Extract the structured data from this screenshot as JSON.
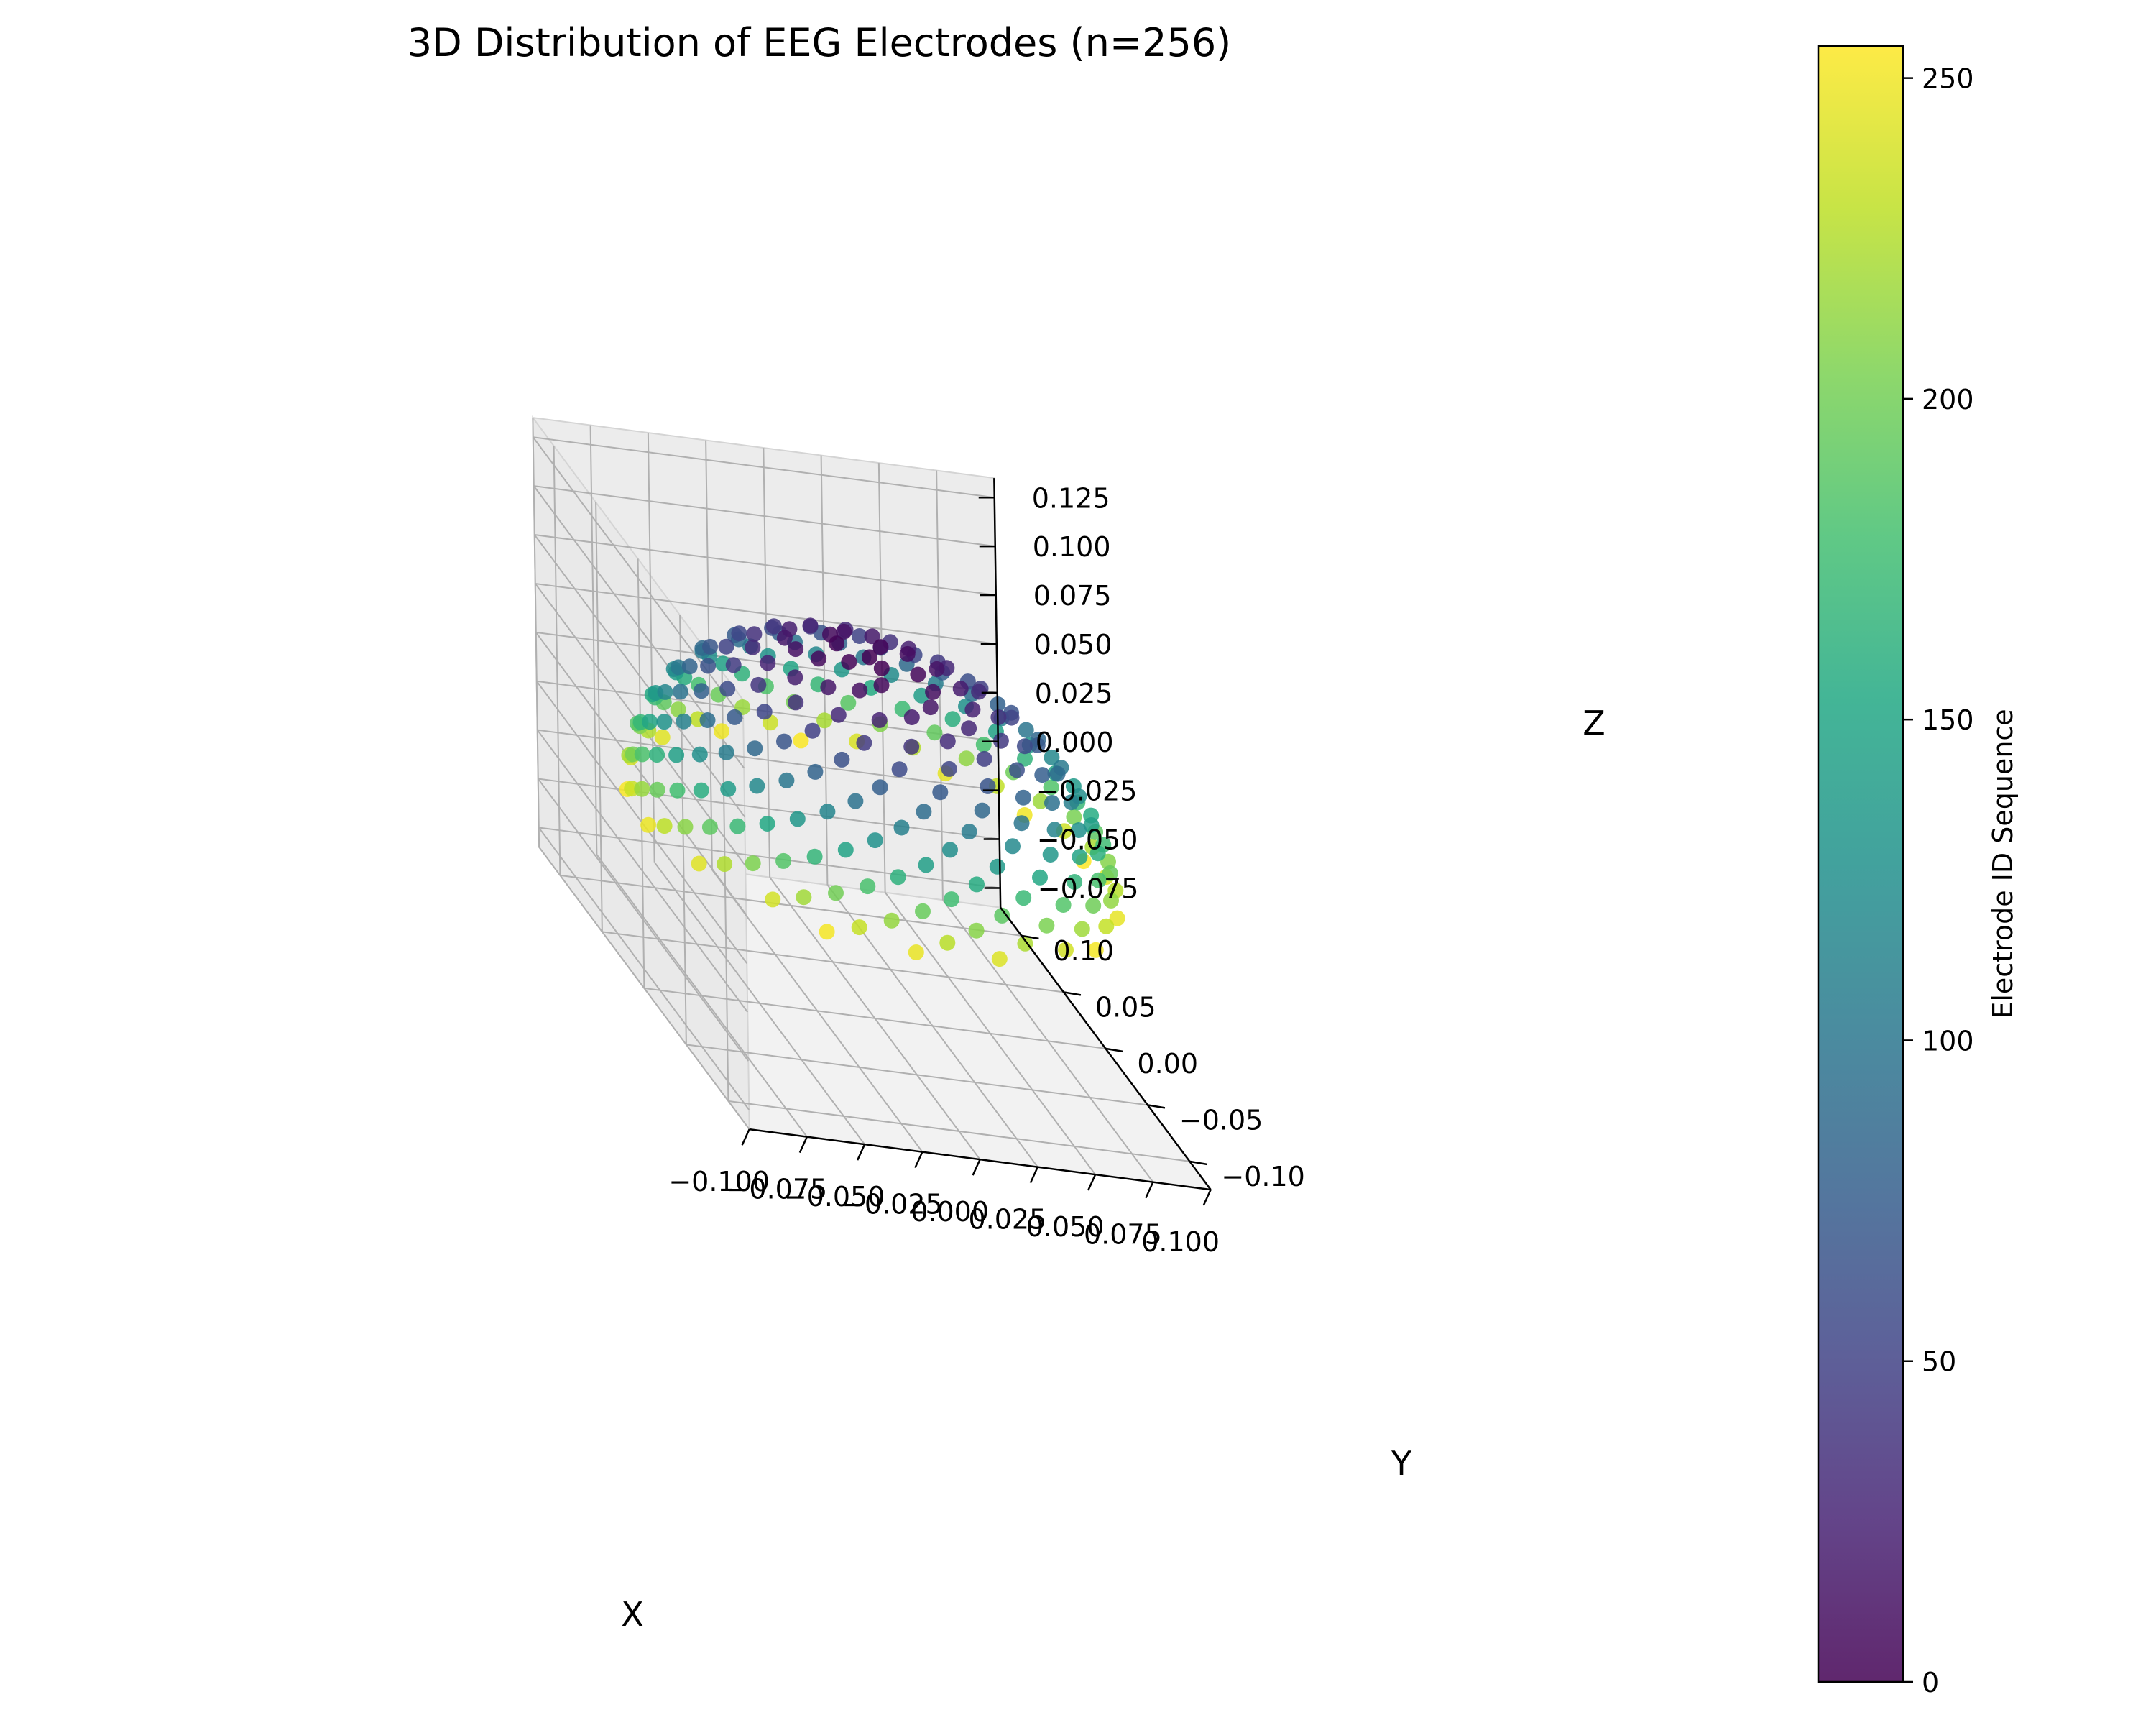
{
  "chart_data": {
    "type": "scatter",
    "projection": "3d",
    "title": "3D Distribution of EEG Electrodes (n=256)",
    "xlabel": "X",
    "ylabel": "Y",
    "zlabel": "Z",
    "xlim": [
      -0.1,
      0.1
    ],
    "ylim": [
      -0.125,
      0.125
    ],
    "zlim": [
      -0.085,
      0.135
    ],
    "x_ticks": [
      "−0.100",
      "−0.075",
      "−0.050",
      "−0.025",
      "0.000",
      "0.025",
      "0.050",
      "0.075",
      "0.100"
    ],
    "y_ticks": [
      "−0.10",
      "−0.05",
      "0.00",
      "0.05",
      "0.10"
    ],
    "z_ticks": [
      "−0.075",
      "−0.050",
      "−0.025",
      "0.000",
      "0.025",
      "0.050",
      "0.075",
      "0.100",
      "0.125"
    ],
    "grid": true,
    "n_points": 256,
    "point_distribution": "upper hemisphere of radius 0.1 with points spaced by electrode index (Fibonacci-like spiral)",
    "colorbar": {
      "label": "Electrode ID Sequence",
      "range": [
        0,
        255
      ],
      "ticks": [
        "0",
        "50",
        "100",
        "150",
        "200",
        "250"
      ],
      "colormap": "viridis"
    },
    "colors": {
      "viridis_stops": [
        "#440154",
        "#482475",
        "#414487",
        "#355f8d",
        "#2a788e",
        "#21918c",
        "#22a884",
        "#44bf70",
        "#7ad151",
        "#bddf26",
        "#fde725"
      ],
      "pane": "#f2f2f2",
      "grid": "#b0b0b0"
    }
  }
}
